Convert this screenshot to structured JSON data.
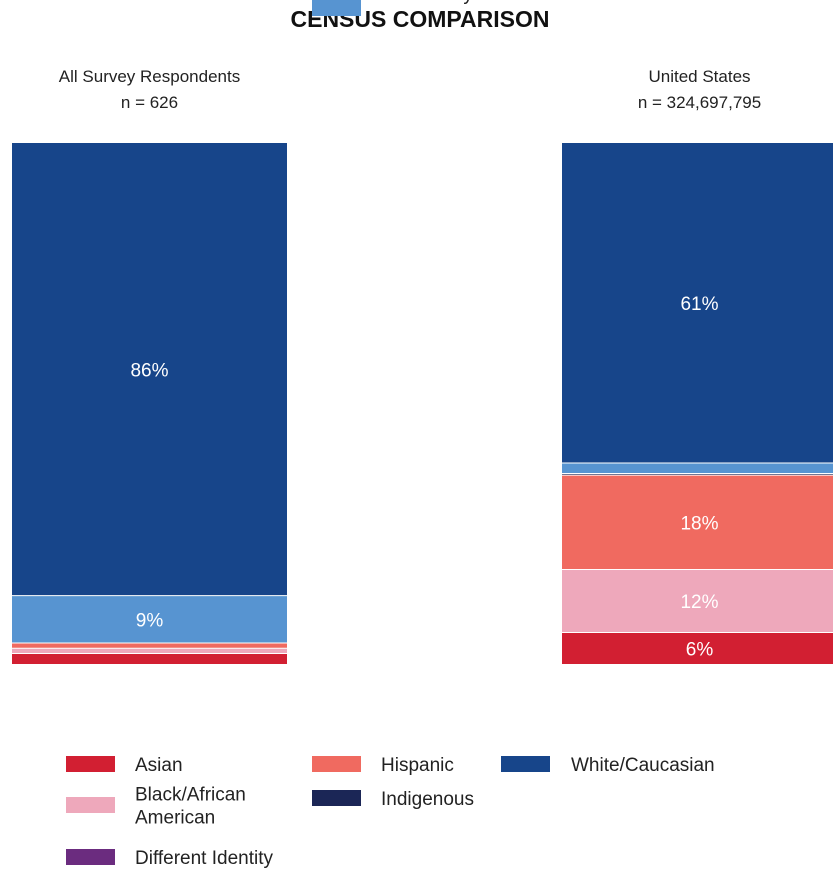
{
  "chart_data": {
    "type": "bar",
    "stacked": true,
    "normalized": true,
    "title": "CENSUS COMPARISON",
    "xlabel": "",
    "ylabel": "",
    "ylim": [
      0,
      100
    ],
    "grid": false,
    "legend_position": "bottom",
    "categories": [
      {
        "name": "All Survey Respondents",
        "n_label": "n = 626"
      },
      {
        "name": "United States",
        "n_label": "n = 324,697,795"
      }
    ],
    "series": [
      {
        "name": "Asian",
        "color": "#d21f32",
        "values": [
          2,
          6
        ],
        "labels": [
          "",
          "6%"
        ]
      },
      {
        "name": "Black/African American",
        "legend_lines": [
          "Black/African",
          "American"
        ],
        "color": "#eea8bb",
        "values": [
          1,
          12
        ],
        "labels": [
          "",
          "12%"
        ]
      },
      {
        "name": "Different Identity",
        "color": "#6b2c7f",
        "values": [
          0,
          0
        ],
        "labels": [
          "",
          ""
        ]
      },
      {
        "name": "Hispanic",
        "color": "#f06a60",
        "values": [
          1,
          18
        ],
        "labels": [
          "",
          "18%"
        ]
      },
      {
        "name": "Indigenous",
        "color": "#1b2656",
        "values": [
          0,
          0.3
        ],
        "labels": [
          "",
          ""
        ]
      },
      {
        "name": "More than one race or ethnicity",
        "legend_lines": [
          "More than one race",
          "or ethnicity"
        ],
        "color": "#5794d1",
        "values": [
          9,
          2
        ],
        "labels": [
          "9%",
          ""
        ]
      },
      {
        "name": "White/Caucasian",
        "color": "#17458a",
        "values": [
          86,
          61
        ],
        "labels": [
          "86%",
          "61%"
        ]
      }
    ]
  }
}
